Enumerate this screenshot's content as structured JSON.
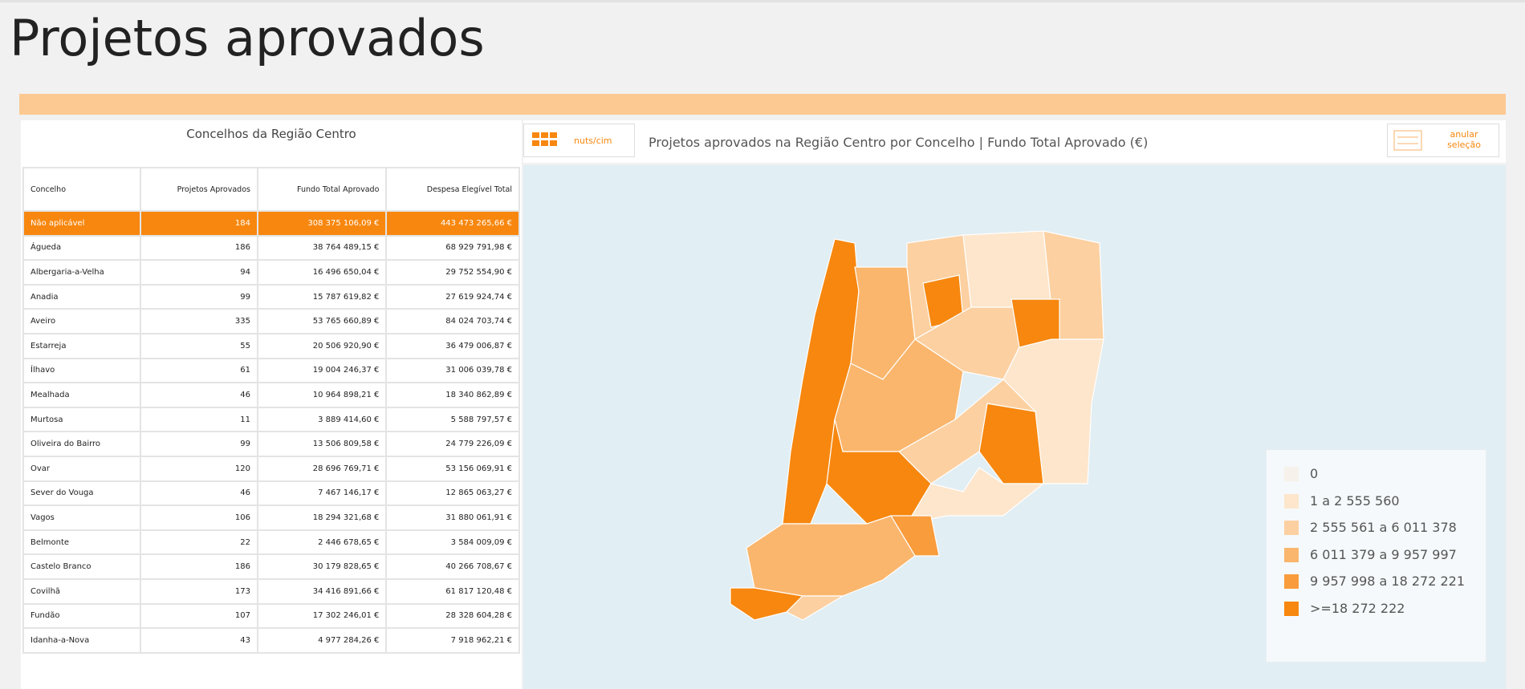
{
  "header": {
    "title": "Projetos aprovados"
  },
  "table_panel": {
    "title": "Concelhos da Região Centro",
    "columns": [
      "Concelho",
      "Projetos Aprovados",
      "Fundo Total Aprovado",
      "Despesa Elegível Total"
    ],
    "rows": [
      [
        "Não aplicável",
        "184",
        "308 375 106,09 €",
        "443 473 265,66 €"
      ],
      [
        "Águeda",
        "186",
        "38 764 489,15 €",
        "68 929 791,98 €"
      ],
      [
        "Albergaria-a-Velha",
        "94",
        "16 496 650,04 €",
        "29 752 554,90 €"
      ],
      [
        "Anadia",
        "99",
        "15 787 619,82 €",
        "27 619 924,74 €"
      ],
      [
        "Aveiro",
        "335",
        "53 765 660,89 €",
        "84 024 703,74 €"
      ],
      [
        "Estarreja",
        "55",
        "20 506 920,90 €",
        "36 479 006,87 €"
      ],
      [
        "Ílhavo",
        "61",
        "19 004 246,37 €",
        "31 006 039,78 €"
      ],
      [
        "Mealhada",
        "46",
        "10 964 898,21 €",
        "18 340 862,89 €"
      ],
      [
        "Murtosa",
        "11",
        "3 889 414,60 €",
        "5 588 797,57 €"
      ],
      [
        "Oliveira do Bairro",
        "99",
        "13 506 809,58 €",
        "24 779 226,09 €"
      ],
      [
        "Ovar",
        "120",
        "28 696 769,71 €",
        "53 156 069,91 €"
      ],
      [
        "Sever do Vouga",
        "46",
        "7 467 146,17 €",
        "12 865 063,27 €"
      ],
      [
        "Vagos",
        "106",
        "18 294 321,68 €",
        "31 880 061,91 €"
      ],
      [
        "Belmonte",
        "22",
        "2 446 678,65 €",
        "3 584 009,09 €"
      ],
      [
        "Castelo Branco",
        "186",
        "30 179 828,65 €",
        "40 266 708,67 €"
      ],
      [
        "Covilhã",
        "173",
        "34 416 891,66 €",
        "61 817 120,48 €"
      ],
      [
        "Fundão",
        "107",
        "17 302 246,01 €",
        "28 328 604,28 €"
      ],
      [
        "Idanha-a-Nova",
        "43",
        "4 977 284,26 €",
        "7 918 962,21 €"
      ]
    ]
  },
  "toolbar": {
    "nuts_button": "nuts/cim",
    "map_title": "Projetos aprovados na Região Centro por Concelho | Fundo Total Aprovado (€)",
    "clear_button": "anular seleção"
  },
  "legend": {
    "items": [
      {
        "label": "0",
        "color": "#f6f1ea"
      },
      {
        "label": "1 a 2 555 560",
        "color": "#fde6cc"
      },
      {
        "label": "2 555 561 a 6 011 378",
        "color": "#fcd0a1"
      },
      {
        "label": "6 011 379 a 9 957 997",
        "color": "#fab66d"
      },
      {
        "label": "9 957 998 a 18 272 221",
        "color": "#f99c3c"
      },
      {
        "label": ">=18 272 222",
        "color": "#f7870f"
      }
    ]
  }
}
